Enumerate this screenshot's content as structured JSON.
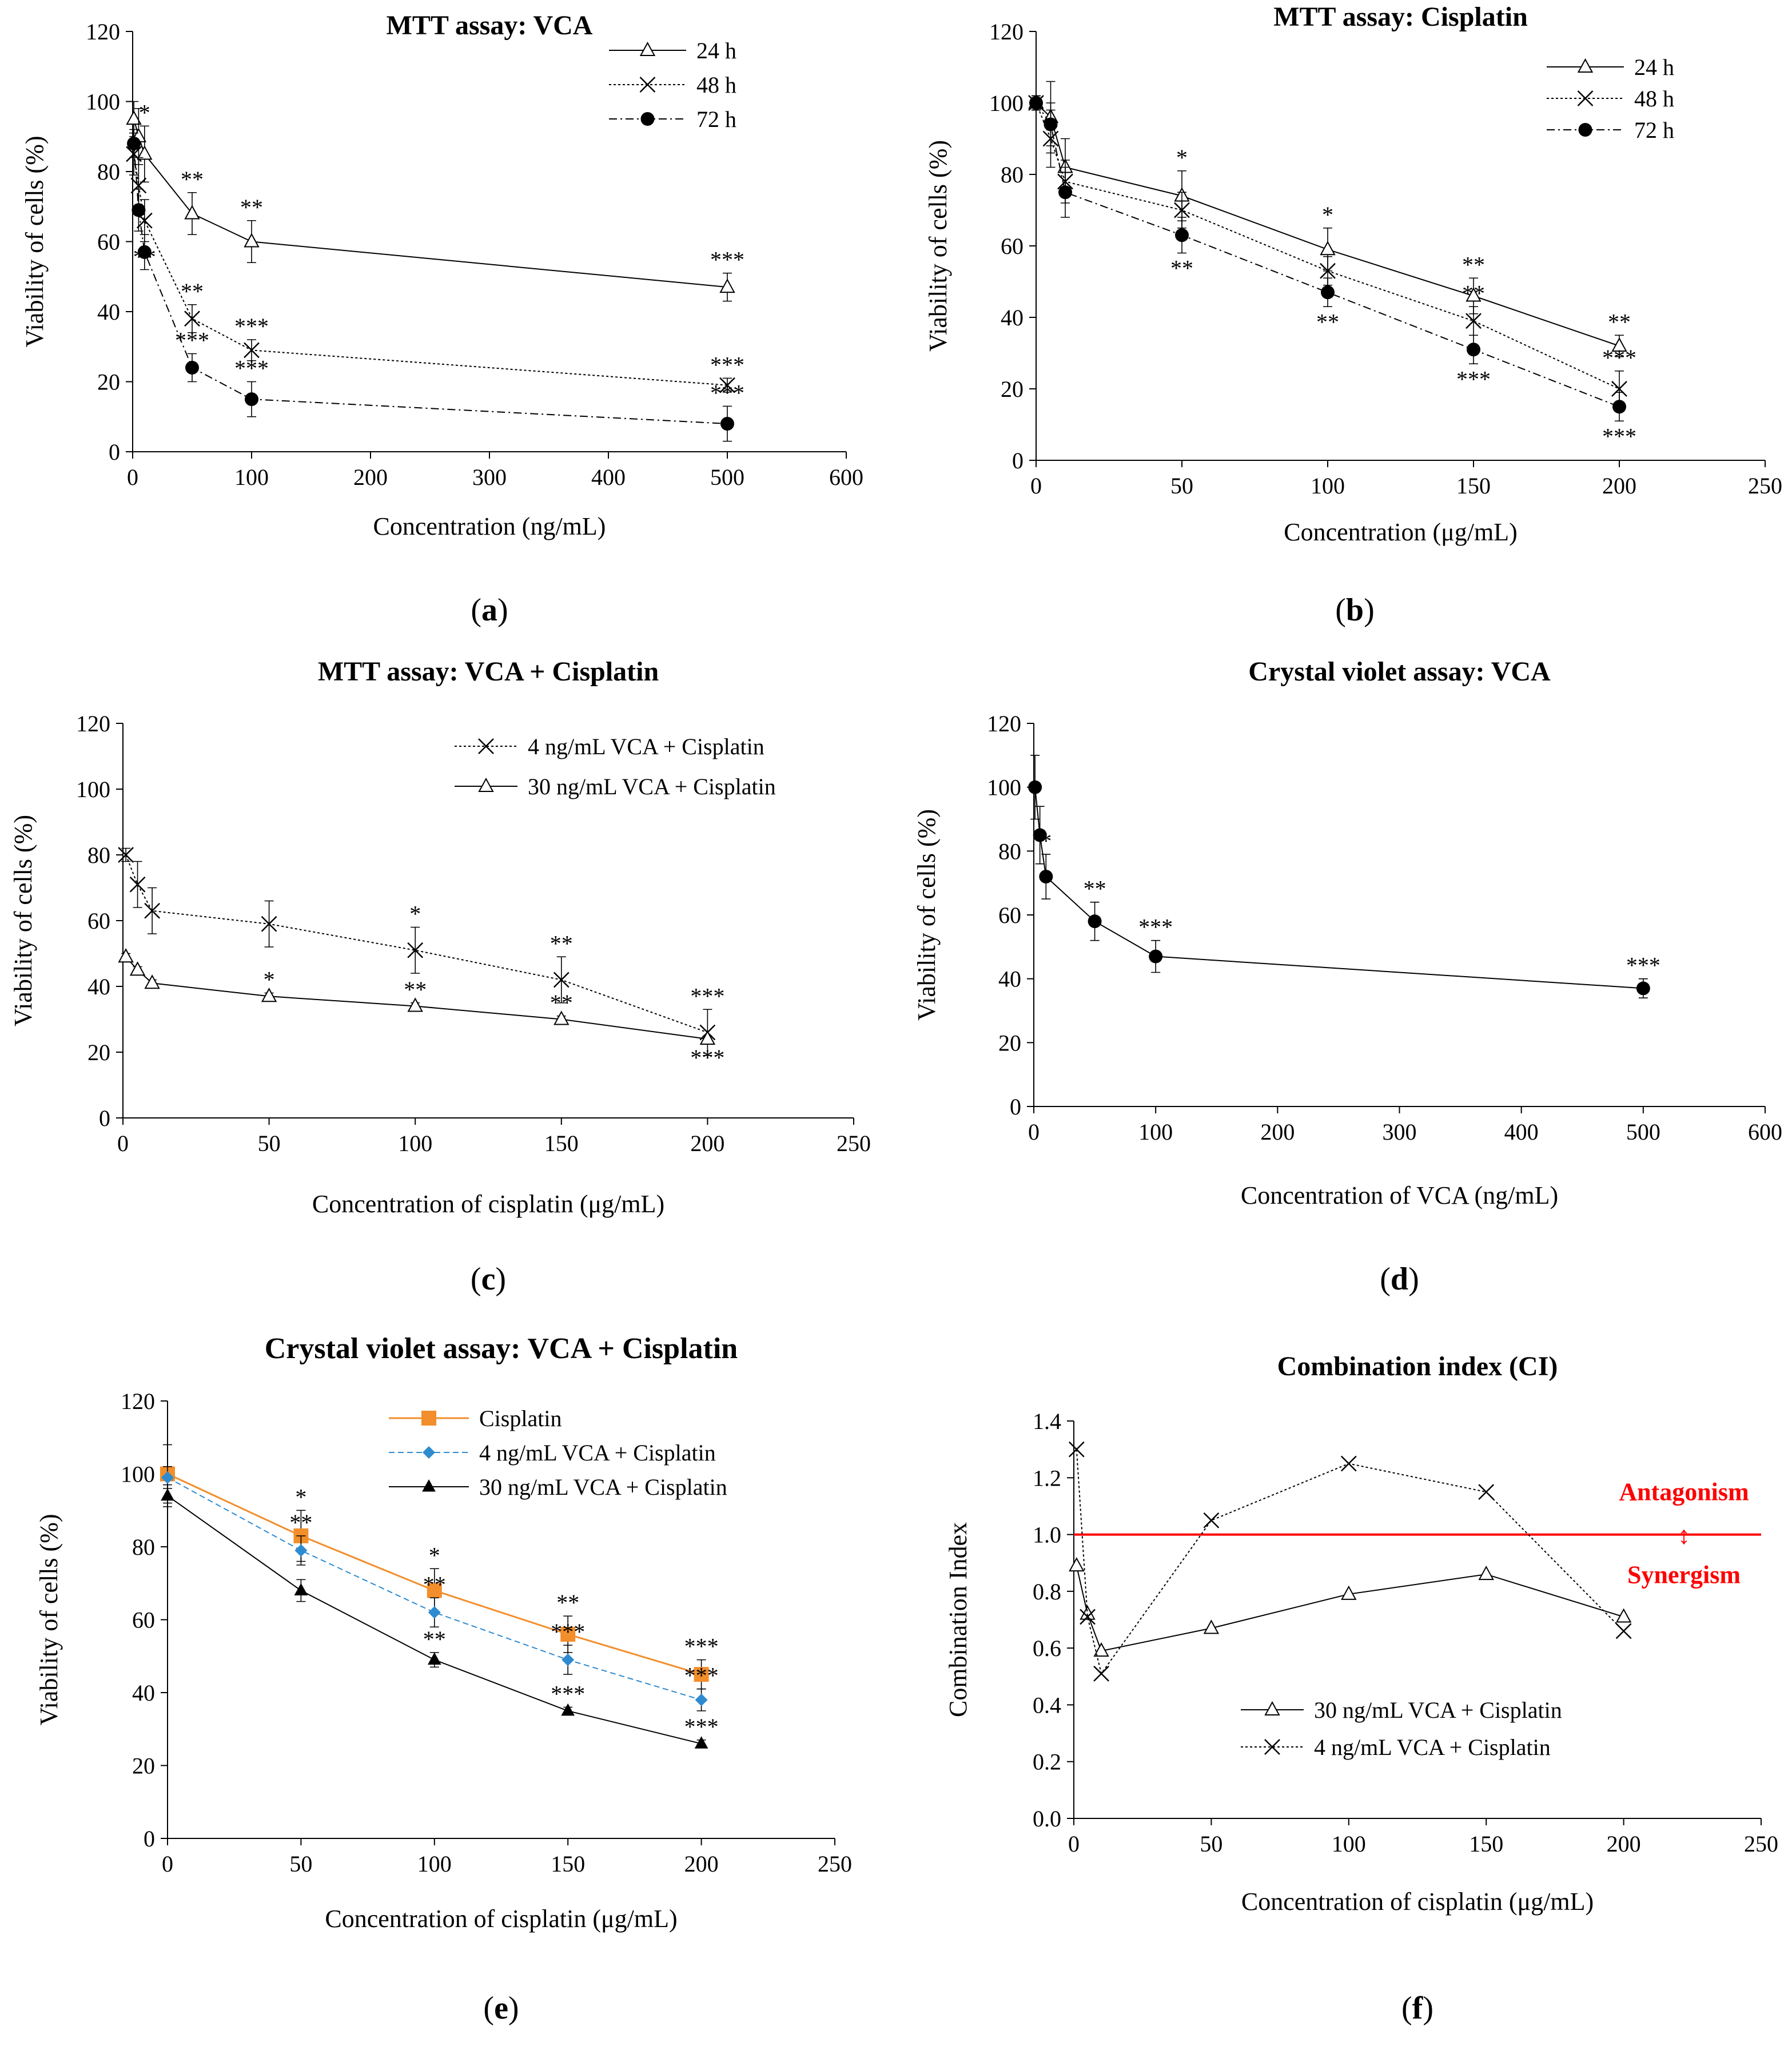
{
  "chart_data": [
    {
      "panel": "a",
      "panel_label": "a",
      "type": "line",
      "title": "MTT assay: VCA",
      "xlabel": "Concentration (ng/mL)",
      "ylabel": "Viability of cells (%)",
      "xlim": [
        0,
        600
      ],
      "ylim": [
        0,
        120
      ],
      "xticks": [
        0,
        100,
        200,
        300,
        400,
        500,
        600
      ],
      "yticks": [
        0,
        20,
        40,
        60,
        80,
        100,
        120
      ],
      "legend_position": "top-right",
      "series": [
        {
          "name": "24 h",
          "marker": "triangle",
          "line": "solid",
          "x": [
            1,
            5,
            10,
            50,
            100,
            500
          ],
          "values": [
            95,
            90,
            85,
            68,
            60,
            47
          ],
          "err": [
            5,
            8,
            8,
            6,
            6,
            4
          ],
          "stars": [
            "",
            "",
            "*",
            "**",
            "**",
            "***"
          ],
          "star_pos": [
            "above",
            "above",
            "above",
            "above",
            "above",
            "above"
          ]
        },
        {
          "name": "48 h",
          "marker": "x",
          "line": "dotted",
          "x": [
            1,
            5,
            10,
            50,
            100,
            500
          ],
          "values": [
            85,
            76,
            66,
            38,
            29,
            19
          ],
          "err": [
            6,
            8,
            6,
            4,
            3,
            2
          ],
          "stars": [
            "",
            "",
            "**",
            "**",
            "***",
            "***"
          ],
          "star_pos": [
            "above",
            "above",
            "below",
            "above",
            "above",
            "above"
          ]
        },
        {
          "name": "72 h",
          "marker": "circle",
          "line": "dashdot",
          "x": [
            1,
            5,
            10,
            50,
            100,
            500
          ],
          "values": [
            88,
            69,
            57,
            24,
            15,
            8
          ],
          "err": [
            4,
            6,
            5,
            4,
            5,
            5
          ],
          "stars": [
            "",
            "",
            "",
            "***",
            "***",
            "***"
          ],
          "star_pos": [
            "above",
            "above",
            "above",
            "above",
            "above",
            "above"
          ]
        }
      ]
    },
    {
      "panel": "b",
      "panel_label": "b",
      "type": "line",
      "title": "MTT assay: Cisplatin",
      "xlabel": "Concentration (μg/mL)",
      "ylabel": "Viability of cells (%)",
      "xlim": [
        0,
        250
      ],
      "ylim": [
        0,
        120
      ],
      "xticks": [
        0,
        50,
        100,
        150,
        200,
        250
      ],
      "yticks": [
        0,
        20,
        40,
        60,
        80,
        100,
        120
      ],
      "legend_position": "top-right",
      "series": [
        {
          "name": "24 h",
          "marker": "triangle",
          "line": "solid",
          "x": [
            0,
            5,
            10,
            50,
            100,
            150,
            200
          ],
          "values": [
            100,
            96,
            82,
            74,
            59,
            46,
            32
          ],
          "err": [
            2,
            10,
            8,
            7,
            6,
            5,
            3
          ],
          "stars": [
            "",
            "",
            "",
            "*",
            "*",
            "**",
            "**"
          ],
          "star_pos": [
            "above",
            "above",
            "above",
            "above",
            "above",
            "above",
            "above"
          ]
        },
        {
          "name": "48 h",
          "marker": "x",
          "line": "dotted",
          "x": [
            0,
            5,
            10,
            50,
            100,
            150,
            200
          ],
          "values": [
            100,
            90,
            78,
            70,
            53,
            39,
            20
          ],
          "err": [
            2,
            8,
            6,
            5,
            4,
            4,
            5
          ],
          "stars": [
            "",
            "",
            "",
            "",
            "",
            "**",
            "***"
          ],
          "star_pos": [
            "above",
            "above",
            "above",
            "above",
            "above",
            "above",
            "above"
          ]
        },
        {
          "name": "72 h",
          "marker": "circle",
          "line": "dashdot",
          "x": [
            0,
            5,
            10,
            50,
            100,
            150,
            200
          ],
          "values": [
            100,
            94,
            75,
            63,
            47,
            31,
            15
          ],
          "err": [
            2,
            6,
            7,
            5,
            4,
            4,
            4
          ],
          "stars": [
            "",
            "",
            "",
            "**",
            "**",
            "***",
            "***"
          ],
          "star_pos": [
            "below",
            "below",
            "below",
            "below",
            "below",
            "below",
            "below"
          ]
        }
      ]
    },
    {
      "panel": "c",
      "panel_label": "c",
      "type": "line",
      "title": "MTT assay: VCA + Cisplatin",
      "xlabel": "Concentration of cisplatin (μg/mL)",
      "ylabel": "Viability of cells (%)",
      "xlim": [
        0,
        250
      ],
      "ylim": [
        0,
        120
      ],
      "xticks": [
        0,
        50,
        100,
        150,
        200,
        250
      ],
      "yticks": [
        0,
        20,
        40,
        60,
        80,
        100,
        120
      ],
      "legend_position": "top-right",
      "series": [
        {
          "name": "4 ng/mL VCA + Cisplatin",
          "marker": "x",
          "line": "dotted",
          "x": [
            1,
            5,
            10,
            50,
            100,
            150,
            200
          ],
          "values": [
            80,
            71,
            63,
            59,
            51,
            42,
            26
          ],
          "err": [
            2,
            7,
            7,
            7,
            7,
            7,
            7
          ],
          "stars": [
            "",
            "",
            "",
            "",
            "*",
            "**",
            "***"
          ],
          "star_pos": [
            "above",
            "above",
            "above",
            "above",
            "above",
            "above",
            "above"
          ]
        },
        {
          "name": "30 ng/mL VCA + Cisplatin",
          "marker": "triangle",
          "line": "solid",
          "x": [
            1,
            5,
            10,
            50,
            100,
            150,
            200
          ],
          "values": [
            49,
            45,
            41,
            37,
            34,
            30,
            24
          ],
          "err": [
            1,
            1,
            1,
            1,
            1,
            1,
            1
          ],
          "stars": [
            "",
            "",
            "",
            "*",
            "**",
            "**",
            "***"
          ],
          "star_pos": [
            "above",
            "above",
            "above",
            "above",
            "above",
            "above",
            "below"
          ]
        }
      ]
    },
    {
      "panel": "d",
      "panel_label": "d",
      "type": "line",
      "title": "Crystal violet assay: VCA",
      "xlabel": "Concentration of VCA (ng/mL)",
      "ylabel": "Viability of cells (%)",
      "xlim": [
        0,
        600
      ],
      "ylim": [
        0,
        120
      ],
      "xticks": [
        0,
        100,
        200,
        300,
        400,
        500,
        600
      ],
      "yticks": [
        0,
        20,
        40,
        60,
        80,
        100,
        120
      ],
      "series": [
        {
          "name": "VCA",
          "marker": "circle",
          "line": "solid",
          "x": [
            1,
            5,
            10,
            50,
            100,
            500
          ],
          "values": [
            100,
            85,
            72,
            58,
            47,
            37
          ],
          "err": [
            10,
            9,
            7,
            6,
            5,
            3
          ],
          "stars": [
            "",
            "",
            "*",
            "**",
            "***",
            "***"
          ],
          "star_pos": [
            "above",
            "above",
            "above",
            "above",
            "above",
            "above"
          ]
        }
      ]
    },
    {
      "panel": "e",
      "panel_label": "e",
      "type": "line",
      "title": "Crystal violet assay: VCA + Cisplatin",
      "xlabel": "Concentration of cisplatin (μg/mL)",
      "ylabel": "Viability of cells (%)",
      "xlim": [
        0,
        250
      ],
      "ylim": [
        0,
        120
      ],
      "xticks": [
        0,
        50,
        100,
        150,
        200,
        250
      ],
      "yticks": [
        0,
        20,
        40,
        60,
        80,
        100,
        120
      ],
      "legend_position": "top-right",
      "series": [
        {
          "name": "Cisplatin",
          "marker": "square",
          "line": "solid",
          "color": "#f28e2b",
          "width": 3,
          "x": [
            0,
            50,
            100,
            150,
            200
          ],
          "values": [
            100,
            83,
            68,
            56,
            45
          ],
          "err": [
            8,
            7,
            6,
            5,
            4
          ],
          "stars": [
            "",
            "*",
            "*",
            "**",
            "***"
          ],
          "star_pos": [
            "above",
            "above",
            "above",
            "above",
            "above"
          ]
        },
        {
          "name": "4 ng/mL VCA + Cisplatin",
          "marker": "diamond",
          "line": "dashed",
          "color": "#2e8bd0",
          "x": [
            0,
            50,
            100,
            150,
            200
          ],
          "values": [
            99,
            79,
            62,
            49,
            38
          ],
          "err": [
            3,
            4,
            4,
            4,
            3
          ],
          "stars": [
            "",
            "**",
            "**",
            "***",
            "***"
          ],
          "star_pos": [
            "above",
            "above",
            "above",
            "above",
            "above"
          ]
        },
        {
          "name": "30 ng/mL VCA + Cisplatin",
          "marker": "tri-filled",
          "line": "solid",
          "color": "#000000",
          "x": [
            0,
            50,
            100,
            150,
            200
          ],
          "values": [
            94,
            68,
            49,
            35,
            26
          ],
          "err": [
            3,
            3,
            2,
            1,
            1
          ],
          "stars": [
            "",
            "",
            "**",
            "***",
            "***"
          ],
          "star_pos": [
            "above",
            "above",
            "above",
            "above",
            "above"
          ]
        }
      ]
    },
    {
      "panel": "f",
      "panel_label": "f",
      "type": "line",
      "title": "Combination index (CI)",
      "xlabel": "Concentration of cisplatin (μg/mL)",
      "ylabel": "Combination Index",
      "xlim": [
        0,
        250
      ],
      "ylim": [
        0,
        1.4
      ],
      "xticks": [
        0,
        50,
        100,
        150,
        200,
        250
      ],
      "yticks": [
        0.0,
        0.2,
        0.4,
        0.6,
        0.8,
        1.0,
        1.2,
        1.4
      ],
      "ytick_labels": [
        "0.0",
        "0.2",
        "0.4",
        "0.6",
        "0.8",
        "1.0",
        "1.2",
        "1.4"
      ],
      "legend_position": "bottom-right",
      "reference_line": {
        "value": 1.0,
        "color": "#ff0000"
      },
      "annotations": {
        "above": "Antagonism",
        "below": "Synergism",
        "arrow": "↕",
        "color": "#ff0000"
      },
      "series": [
        {
          "name": "30 ng/mL VCA + Cisplatin",
          "marker": "triangle",
          "line": "solid",
          "x": [
            1,
            5,
            10,
            50,
            100,
            150,
            200
          ],
          "values": [
            0.89,
            0.72,
            0.59,
            0.67,
            0.79,
            0.86,
            0.71
          ]
        },
        {
          "name": "4 ng/mL VCA + Cisplatin",
          "marker": "x",
          "line": "dotted",
          "x": [
            1,
            5,
            10,
            50,
            100,
            150,
            200
          ],
          "values": [
            1.3,
            0.71,
            0.51,
            1.05,
            1.25,
            1.15,
            0.66
          ]
        }
      ]
    }
  ]
}
